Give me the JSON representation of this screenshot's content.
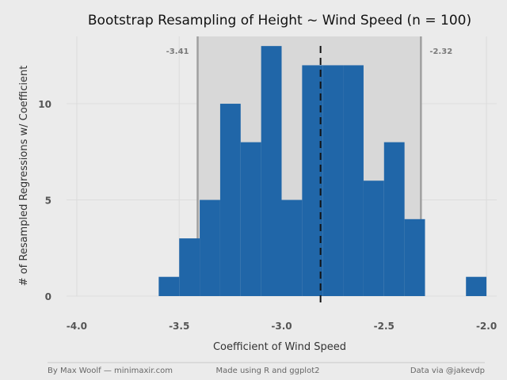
{
  "chart_data": {
    "type": "histogram",
    "title": "Bootstrap Resampling of Height ~ Wind Speed (n = 100)",
    "xlabel": "Coefficient of Wind Speed",
    "ylabel": "# of Resampled Regressions w/ Coefficient",
    "xlim": [
      -4.05,
      -1.95
    ],
    "ylim": [
      0,
      13.5
    ],
    "x_ticks": [
      {
        "value": -4.0,
        "label": "-4.0"
      },
      {
        "value": -3.5,
        "label": "-3.5"
      },
      {
        "value": -3.0,
        "label": "-3.0"
      },
      {
        "value": -2.5,
        "label": "-2.5"
      },
      {
        "value": -2.0,
        "label": "-2.0"
      }
    ],
    "y_ticks": [
      {
        "value": 0,
        "label": "0"
      },
      {
        "value": 5,
        "label": "5"
      },
      {
        "value": 10,
        "label": "10"
      }
    ],
    "bin_width": 0.1,
    "bins": [
      {
        "x0": -3.6,
        "x1": -3.5,
        "count": 1
      },
      {
        "x0": -3.5,
        "x1": -3.4,
        "count": 3
      },
      {
        "x0": -3.4,
        "x1": -3.3,
        "count": 5
      },
      {
        "x0": -3.3,
        "x1": -3.2,
        "count": 10
      },
      {
        "x0": -3.2,
        "x1": -3.1,
        "count": 8
      },
      {
        "x0": -3.1,
        "x1": -3.0,
        "count": 13
      },
      {
        "x0": -3.0,
        "x1": -2.9,
        "count": 5
      },
      {
        "x0": -2.9,
        "x1": -2.8,
        "count": 12
      },
      {
        "x0": -2.8,
        "x1": -2.7,
        "count": 12
      },
      {
        "x0": -2.7,
        "x1": -2.6,
        "count": 12
      },
      {
        "x0": -2.6,
        "x1": -2.5,
        "count": 6
      },
      {
        "x0": -2.5,
        "x1": -2.4,
        "count": 8
      },
      {
        "x0": -2.4,
        "x1": -2.3,
        "count": 4
      },
      {
        "x0": -2.1,
        "x1": -2.0,
        "count": 1
      }
    ],
    "ci": {
      "lower": -3.41,
      "upper": -2.32,
      "lower_label": "-3.41",
      "upper_label": "-2.32"
    },
    "mean_line": -2.81,
    "colors": {
      "bar": "#2066a8",
      "ci_band": "#d8d8d8",
      "ci_line": "#a0a0a0",
      "mean_line": "#111111",
      "grid": "#dcdcdc",
      "background": "#ebebeb"
    }
  },
  "footer": {
    "left": "By Max Woolf — minimaxir.com",
    "center": "Made using R and ggplot2",
    "right": "Data via @jakevdp"
  }
}
